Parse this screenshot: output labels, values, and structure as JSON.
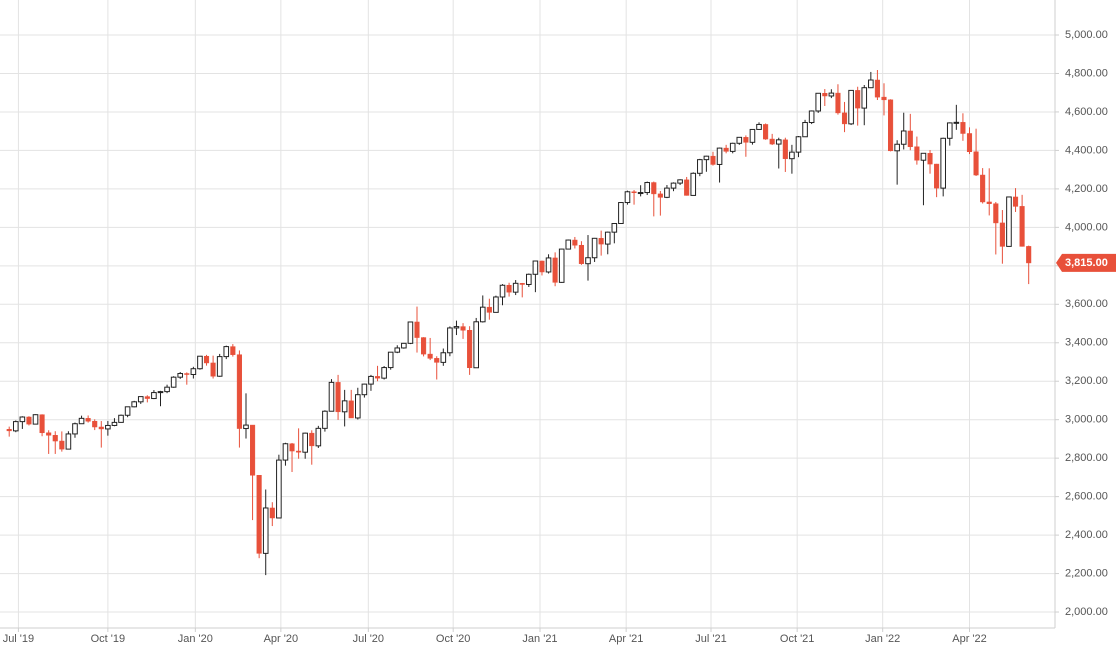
{
  "chart_data": {
    "type": "candlestick",
    "up_color": "#ffffff",
    "up_stroke": "#222222",
    "down_color": "#e8503a",
    "grid": true,
    "ylim": [
      1917,
      5182
    ],
    "yticks": [
      {
        "value": 2000,
        "label": "2,000.00"
      },
      {
        "value": 2200,
        "label": "2,200.00"
      },
      {
        "value": 2400,
        "label": "2,400.00"
      },
      {
        "value": 2600,
        "label": "2,600.00"
      },
      {
        "value": 2800,
        "label": "2,800.00"
      },
      {
        "value": 3000,
        "label": "3,000.00"
      },
      {
        "value": 3200,
        "label": "3,200.00"
      },
      {
        "value": 3400,
        "label": "3,400.00"
      },
      {
        "value": 3600,
        "label": "3,600.00"
      },
      {
        "value": 3800,
        "label": "3,800.00"
      },
      {
        "value": 4000,
        "label": "4,000.00"
      },
      {
        "value": 4200,
        "label": "4,200.00"
      },
      {
        "value": 4400,
        "label": "4,400.00"
      },
      {
        "value": 4600,
        "label": "4,600.00"
      },
      {
        "value": 4800,
        "label": "4,800.00"
      },
      {
        "value": 5000,
        "label": "5,000.00"
      }
    ],
    "xlim": [
      -1.4,
      159
    ],
    "xticks": [
      {
        "value": 1.4,
        "label": "Jul '19"
      },
      {
        "value": 15.0,
        "label": "Oct '19"
      },
      {
        "value": 28.3,
        "label": "Jan '20"
      },
      {
        "value": 41.3,
        "label": "Apr '20"
      },
      {
        "value": 54.6,
        "label": "Jul '20"
      },
      {
        "value": 67.5,
        "label": "Oct '20"
      },
      {
        "value": 80.7,
        "label": "Jan '21"
      },
      {
        "value": 93.8,
        "label": "Apr '21"
      },
      {
        "value": 106.7,
        "label": "Jul '21"
      },
      {
        "value": 119.8,
        "label": "Oct '21"
      },
      {
        "value": 132.8,
        "label": "Jan '22"
      },
      {
        "value": 146.0,
        "label": "Apr '22"
      }
    ],
    "last_price": {
      "value": 3815,
      "label": "3,815.00"
    },
    "open": [
      2950,
      2942,
      2990,
      3014,
      2977,
      3026,
      2932,
      2919,
      2889,
      2847,
      2926,
      2979,
      3007,
      2992,
      2962,
      2952,
      2970,
      2986,
      3023,
      3067,
      3093,
      3120,
      3110,
      3141,
      3146,
      3169,
      3221,
      3240,
      3235,
      3265,
      3330,
      3295,
      3226,
      3328,
      3380,
      3338,
      2954,
      2972,
      2711,
      2305,
      2541,
      2489,
      2790,
      2875,
      2837,
      2831,
      2930,
      2864,
      2955,
      3044,
      3194,
      3041,
      3098,
      3009,
      3130,
      3185,
      3225,
      3216,
      3271,
      3351,
      3373,
      3397,
      3508,
      3427,
      3341,
      3319,
      3298,
      3348,
      3477,
      3484,
      3465,
      3270,
      3509,
      3585,
      3558,
      3638,
      3699,
      3663,
      3709,
      3703,
      3756,
      3825,
      3768,
      3841,
      3714,
      3887,
      3934,
      3907,
      3811,
      3842,
      3943,
      3913,
      3975,
      4020,
      4129,
      4185,
      4180,
      4181,
      4233,
      4174,
      4156,
      4204,
      4230,
      4247,
      4166,
      4281,
      4352,
      4370,
      4327,
      4412,
      4395,
      4437,
      4468,
      4442,
      4509,
      4535,
      4459,
      4433,
      4455,
      4357,
      4391,
      4471,
      4545,
      4605,
      4697,
      4683,
      4698,
      4595,
      4538,
      4712,
      4620,
      4726,
      4766,
      4677,
      4663,
      4398,
      4432,
      4501,
      4419,
      4349,
      4385,
      4329,
      4204,
      4463,
      4543,
      4546,
      4488,
      4393,
      4272,
      4132,
      4123,
      4023,
      3901,
      4158,
      4109,
      3901
    ],
    "high": [
      2964,
      2996,
      3018,
      3018,
      3028,
      3028,
      2945,
      2940,
      2939,
      2940,
      2985,
      3021,
      3022,
      3002,
      2993,
      2993,
      3008,
      3027,
      3067,
      3098,
      3120,
      3127,
      3154,
      3150,
      3182,
      3226,
      3248,
      3246,
      3275,
      3330,
      3337,
      3333,
      3342,
      3385,
      3393,
      3360,
      3137,
      2972,
      2711,
      2637,
      2571,
      2818,
      2880,
      2879,
      2955,
      2933,
      2945,
      2968,
      3049,
      3211,
      3233,
      3155,
      3155,
      3166,
      3187,
      3233,
      3280,
      3279,
      3352,
      3387,
      3399,
      3509,
      3588,
      3429,
      3425,
      3330,
      3370,
      3485,
      3515,
      3502,
      3486,
      3529,
      3646,
      3629,
      3645,
      3705,
      3712,
      3726,
      3711,
      3760,
      3826,
      3827,
      3860,
      3870,
      3889,
      3937,
      3950,
      3928,
      3960,
      3945,
      3983,
      3978,
      4021,
      4131,
      4191,
      4194,
      4219,
      4238,
      4238,
      4189,
      4220,
      4234,
      4250,
      4262,
      4286,
      4356,
      4372,
      4393,
      4415,
      4429,
      4440,
      4469,
      4478,
      4511,
      4546,
      4540,
      4486,
      4466,
      4466,
      4429,
      4475,
      4559,
      4608,
      4698,
      4719,
      4718,
      4744,
      4652,
      4714,
      4731,
      4740,
      4808,
      4818,
      4749,
      4666,
      4453,
      4596,
      4590,
      4472,
      4386,
      4402,
      4330,
      4466,
      4546,
      4637,
      4593,
      4520,
      4513,
      4308,
      4307,
      4132,
      4090,
      4160,
      4204,
      4169,
      3905
    ],
    "low": [
      2912,
      2935,
      2952,
      2970,
      2975,
      2914,
      2822,
      2822,
      2834,
      2846,
      2906,
      2978,
      2985,
      2946,
      2855,
      2917,
      2966,
      2986,
      3013,
      3064,
      3082,
      3090,
      3107,
      3070,
      3138,
      3166,
      3212,
      3182,
      3214,
      3260,
      3281,
      3214,
      3223,
      3315,
      3328,
      2855,
      2902,
      2478,
      2280,
      2192,
      2447,
      2489,
      2761,
      2728,
      2797,
      2797,
      2766,
      2853,
      2938,
      3044,
      2999,
      2965,
      3009,
      3001,
      3115,
      3150,
      3200,
      3209,
      3260,
      3346,
      3369,
      3393,
      3349,
      3329,
      3310,
      3209,
      3280,
      3330,
      3440,
      3420,
      3233,
      3270,
      3505,
      3520,
      3558,
      3595,
      3640,
      3648,
      3636,
      3690,
      3663,
      3750,
      3760,
      3694,
      3712,
      3885,
      3890,
      3805,
      3723,
      3820,
      3853,
      3860,
      3917,
      4020,
      4118,
      4118,
      4161,
      4168,
      4057,
      4061,
      4152,
      4188,
      4220,
      4165,
      4166,
      4266,
      4289,
      4321,
      4233,
      4385,
      4385,
      4429,
      4367,
      4430,
      4508,
      4455,
      4428,
      4306,
      4288,
      4279,
      4365,
      4470,
      4537,
      4595,
      4631,
      4672,
      4586,
      4495,
      4532,
      4529,
      4531,
      4724,
      4662,
      4582,
      4395,
      4222,
      4405,
      4401,
      4326,
      4115,
      4279,
      4157,
      4161,
      4425,
      4507,
      4450,
      4381,
      4267,
      4124,
      4062,
      3859,
      3811,
      3900,
      4080,
      3900,
      3705
    ],
    "close": [
      2942,
      2990,
      3014,
      2977,
      3026,
      2932,
      2919,
      2889,
      2847,
      2926,
      2979,
      3007,
      2992,
      2962,
      2952,
      2970,
      2986,
      3023,
      3067,
      3093,
      3120,
      3110,
      3141,
      3146,
      3169,
      3221,
      3240,
      3235,
      3265,
      3330,
      3295,
      3226,
      3328,
      3380,
      3338,
      2954,
      2972,
      2711,
      2305,
      2541,
      2489,
      2790,
      2875,
      2837,
      2831,
      2930,
      2864,
      2955,
      3044,
      3194,
      3041,
      3098,
      3009,
      3130,
      3185,
      3225,
      3216,
      3271,
      3351,
      3373,
      3397,
      3508,
      3427,
      3341,
      3319,
      3298,
      3348,
      3477,
      3484,
      3465,
      3270,
      3509,
      3585,
      3558,
      3638,
      3699,
      3663,
      3709,
      3703,
      3756,
      3825,
      3768,
      3841,
      3714,
      3887,
      3934,
      3907,
      3811,
      3842,
      3943,
      3913,
      3975,
      4020,
      4129,
      4185,
      4180,
      4181,
      4233,
      4174,
      4156,
      4204,
      4230,
      4247,
      4166,
      4281,
      4352,
      4370,
      4327,
      4412,
      4395,
      4437,
      4468,
      4442,
      4509,
      4535,
      4459,
      4433,
      4455,
      4357,
      4391,
      4471,
      4545,
      4605,
      4697,
      4683,
      4698,
      4595,
      4538,
      4712,
      4620,
      4726,
      4766,
      4677,
      4663,
      4398,
      4432,
      4501,
      4419,
      4349,
      4385,
      4329,
      4204,
      4463,
      4543,
      4546,
      4488,
      4393,
      4272,
      4132,
      4123,
      4023,
      3901,
      4158,
      4109,
      3901,
      3815
    ]
  }
}
